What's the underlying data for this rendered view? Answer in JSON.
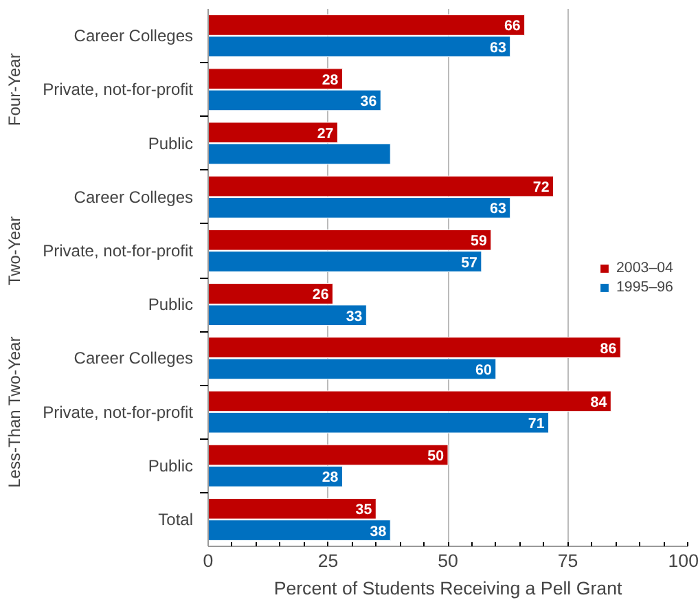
{
  "chart_data": {
    "type": "bar",
    "orientation": "horizontal",
    "xlabel": "Percent of Students Receiving a Pell Grant",
    "categories": [
      "Career Colleges",
      "Private, not-for-profit",
      "Public",
      "Career Colleges",
      "Private, not-for-profit",
      "Public",
      "Career Colleges",
      "Private, not-for-profit",
      "Public",
      "Total"
    ],
    "annotations": [
      "Four-Year",
      "Two-Year",
      "Less-Than Two-Year"
    ],
    "series": [
      {
        "name": "2003–04",
        "color": "#c00000",
        "values": [
          66,
          28,
          27,
          72,
          59,
          26,
          86,
          84,
          50,
          35
        ],
        "value_labels": [
          "66",
          "28",
          "27",
          "72",
          "59",
          "26",
          "86",
          "84",
          "50",
          "35"
        ]
      },
      {
        "name": "1995–96",
        "color": "#0070c0",
        "values": [
          63,
          36,
          38,
          63,
          57,
          33,
          60,
          71,
          28,
          38
        ],
        "value_labels": [
          "63",
          "36",
          null,
          "63",
          "57",
          "33",
          "60",
          "71",
          "28",
          "38"
        ]
      }
    ],
    "xlim": [
      0,
      100
    ],
    "xticks": [
      0,
      25,
      50,
      75,
      100
    ],
    "grid": "x",
    "legend": "right"
  }
}
